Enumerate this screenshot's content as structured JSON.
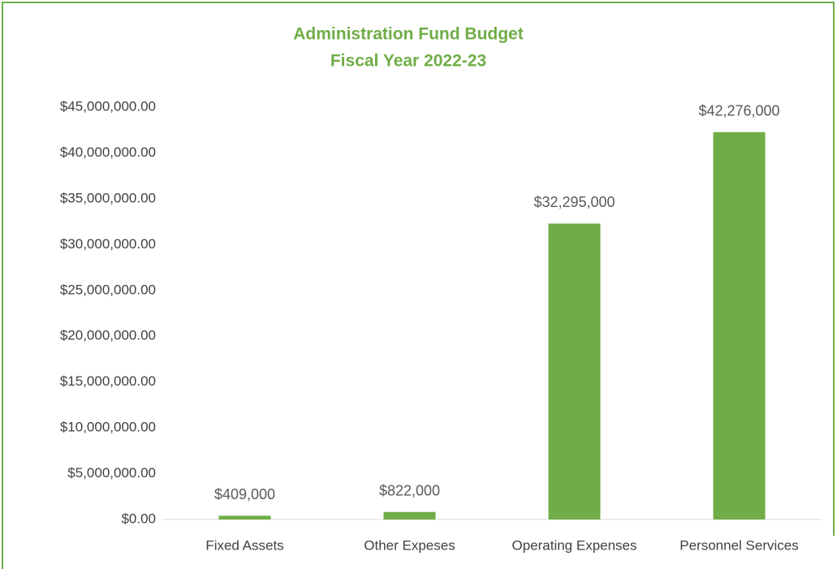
{
  "chart_data": {
    "type": "bar",
    "title": "Administration Fund Budget",
    "subtitle": "Fiscal Year 2022-23",
    "categories": [
      "Fixed Assets",
      "Other Expeses",
      "Operating Expenses",
      "Personnel Services"
    ],
    "values": [
      409000,
      822000,
      32295000,
      42276000
    ],
    "value_labels": [
      "$409,000",
      "$822,000",
      "$32,295,000",
      "$42,276,000"
    ],
    "color": "#70ad47",
    "ylim": [
      0,
      45000000
    ],
    "yticks": [
      {
        "value": 0,
        "label": "$0.00"
      },
      {
        "value": 5000000,
        "label": "$5,000,000.00"
      },
      {
        "value": 10000000,
        "label": "$10,000,000.00"
      },
      {
        "value": 15000000,
        "label": "$15,000,000.00"
      },
      {
        "value": 20000000,
        "label": "$20,000,000.00"
      },
      {
        "value": 25000000,
        "label": "$25,000,000.00"
      },
      {
        "value": 30000000,
        "label": "$30,000,000.00"
      },
      {
        "value": 35000000,
        "label": "$35,000,000.00"
      },
      {
        "value": 40000000,
        "label": "$40,000,000.00"
      },
      {
        "value": 45000000,
        "label": "$45,000,000.00"
      }
    ],
    "grid": false
  }
}
